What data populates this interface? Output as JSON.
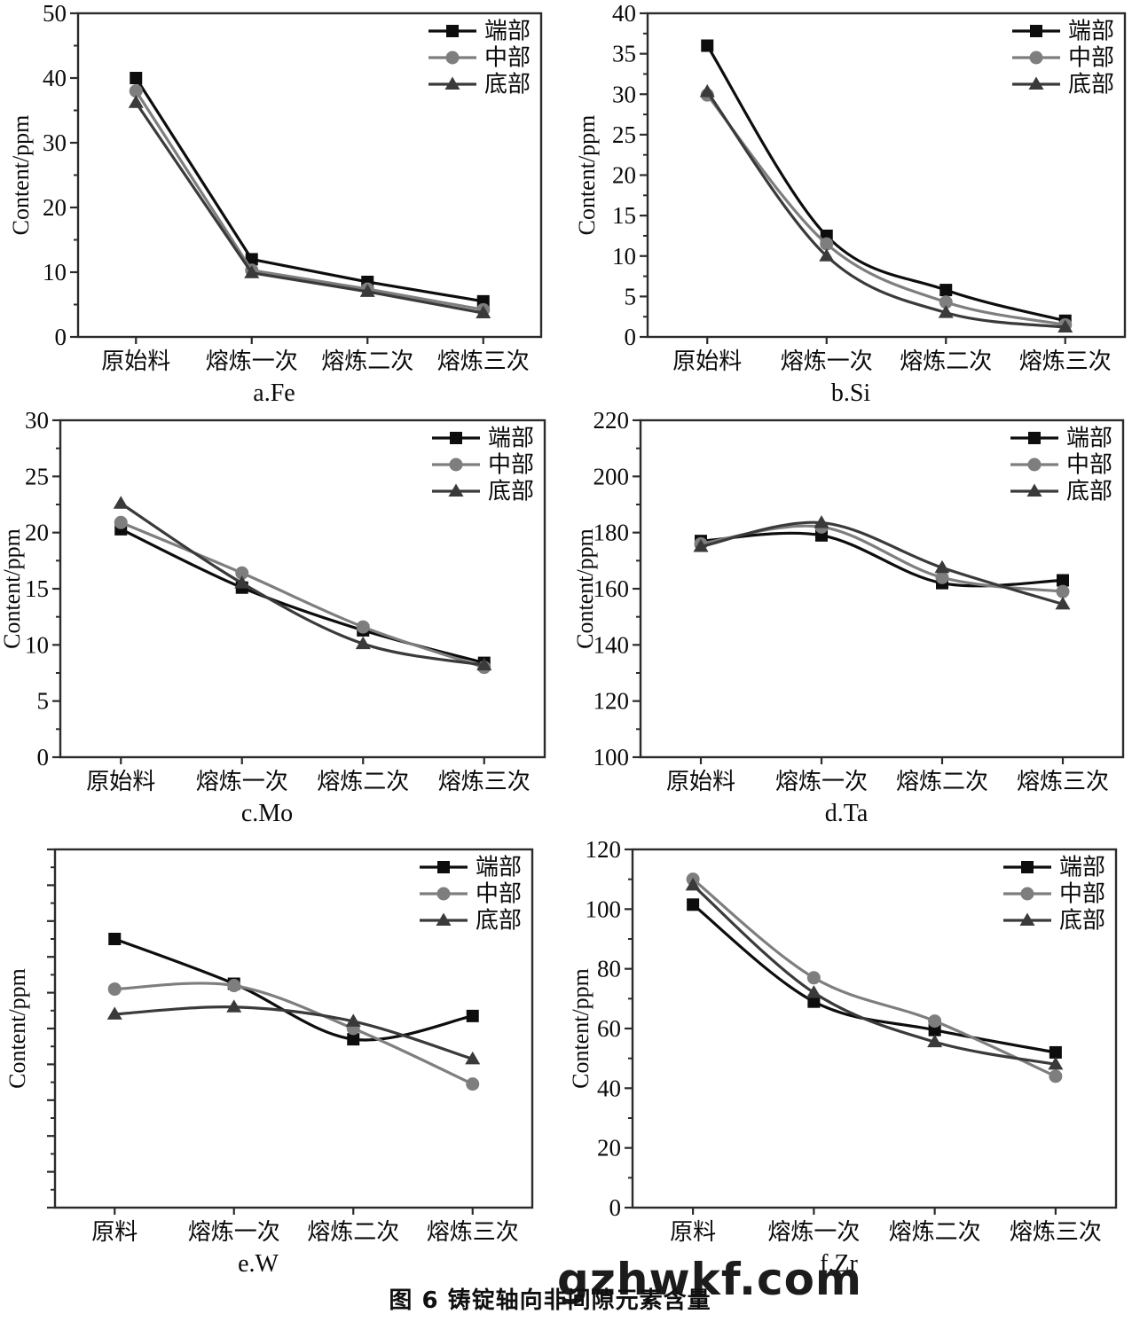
{
  "page": {
    "caption": "图 6  铸锭轴向非间隙元素含量",
    "watermark": "gzhwkf.com"
  },
  "legend_labels": [
    "端部",
    "中部",
    "底部"
  ],
  "series_colors": {
    "duanbu": "#0d0d0d",
    "zhongbu": "#7e7e7e",
    "dibu": "#3a3a3a"
  },
  "chart_data": [
    {
      "id": "a-fe",
      "type": "line",
      "label": "a.Fe",
      "ylabel": "Content/ppm",
      "categories": [
        "原始料",
        "熔炼一次",
        "熔炼二次",
        "熔炼三次"
      ],
      "ylim": [
        0,
        50
      ],
      "ytick_step": 10,
      "yminor_step": 5,
      "ytick_labels_visible": true,
      "smooth": false,
      "legend_position": "top-right",
      "series": [
        {
          "name": "端部",
          "marker": "square",
          "color": "#0d0d0d",
          "values": [
            40,
            12,
            8.5,
            5.5
          ]
        },
        {
          "name": "中部",
          "marker": "circle",
          "color": "#7e7e7e",
          "values": [
            38,
            10.3,
            7.4,
            4.2
          ]
        },
        {
          "name": "底部",
          "marker": "triangle",
          "color": "#3a3a3a",
          "values": [
            36.2,
            9.9,
            7.0,
            3.7
          ]
        }
      ]
    },
    {
      "id": "b-si",
      "type": "line",
      "label": "b.Si",
      "ylabel": "Content/ppm",
      "categories": [
        "原始料",
        "熔炼一次",
        "熔炼二次",
        "熔炼三次"
      ],
      "ylim": [
        0,
        40
      ],
      "ytick_step": 5,
      "yminor_step": 2.5,
      "ytick_labels_visible": true,
      "smooth": true,
      "legend_position": "top-right",
      "series": [
        {
          "name": "端部",
          "marker": "square",
          "color": "#0d0d0d",
          "values": [
            36,
            12.5,
            5.8,
            2.0
          ]
        },
        {
          "name": "中部",
          "marker": "circle",
          "color": "#7e7e7e",
          "values": [
            29.9,
            11.5,
            4.3,
            1.5
          ]
        },
        {
          "name": "底部",
          "marker": "triangle",
          "color": "#3a3a3a",
          "values": [
            30.3,
            10.0,
            3.0,
            1.2
          ]
        }
      ]
    },
    {
      "id": "c-mo",
      "type": "line",
      "label": "c.Mo",
      "ylabel": "Content/ppm",
      "categories": [
        "原始料",
        "熔炼一次",
        "熔炼二次",
        "熔炼三次"
      ],
      "ylim": [
        0,
        30
      ],
      "ytick_step": 5,
      "yminor_step": 2.5,
      "ytick_labels_visible": true,
      "smooth": true,
      "legend_position": "top-right",
      "series": [
        {
          "name": "端部",
          "marker": "square",
          "color": "#0d0d0d",
          "values": [
            20.3,
            15.1,
            11.3,
            8.4
          ]
        },
        {
          "name": "中部",
          "marker": "circle",
          "color": "#7e7e7e",
          "values": [
            20.9,
            16.4,
            11.6,
            8.0
          ]
        },
        {
          "name": "底部",
          "marker": "triangle",
          "color": "#3a3a3a",
          "values": [
            22.6,
            15.5,
            10.1,
            8.2
          ]
        }
      ]
    },
    {
      "id": "d-ta",
      "type": "line",
      "label": "d.Ta",
      "ylabel": "Content/ppm",
      "categories": [
        "原始料",
        "熔炼一次",
        "熔炼二次",
        "熔炼三次"
      ],
      "ylim": [
        100,
        220
      ],
      "ytick_step": 20,
      "yminor_step": 10,
      "ytick_labels_visible": true,
      "smooth": true,
      "legend_position": "top-right",
      "series": [
        {
          "name": "端部",
          "marker": "square",
          "color": "#0d0d0d",
          "values": [
            177,
            179,
            162,
            163
          ]
        },
        {
          "name": "中部",
          "marker": "circle",
          "color": "#7e7e7e",
          "values": [
            176,
            182,
            164,
            159
          ]
        },
        {
          "name": "底部",
          "marker": "triangle",
          "color": "#3a3a3a",
          "values": [
            175,
            183.5,
            167.5,
            154.5
          ]
        }
      ]
    },
    {
      "id": "e-w",
      "type": "line",
      "label": "e.W",
      "ylabel": "Content/ppm",
      "categories": [
        "原料",
        "熔炼一次",
        "熔炼二次",
        "熔炼三次"
      ],
      "ylim": [
        0,
        100
      ],
      "ytick_step": 10,
      "yminor_step": 5,
      "ytick_labels_visible": false,
      "y_scale_note": "axis unlabeled in figure; values are relative estimates",
      "smooth": true,
      "legend_position": "top-right",
      "series": [
        {
          "name": "端部",
          "marker": "square",
          "color": "#0d0d0d",
          "values": [
            75,
            62.5,
            47,
            53.5
          ]
        },
        {
          "name": "中部",
          "marker": "circle",
          "color": "#7e7e7e",
          "values": [
            61,
            62,
            50,
            34.5
          ]
        },
        {
          "name": "底部",
          "marker": "triangle",
          "color": "#3a3a3a",
          "values": [
            54,
            56,
            52,
            41.5
          ]
        }
      ]
    },
    {
      "id": "f-zr",
      "type": "line",
      "label": "f.Zr",
      "ylabel": "Content/ppm",
      "categories": [
        "原料",
        "熔炼一次",
        "熔炼二次",
        "熔炼三次"
      ],
      "ylim": [
        0,
        120
      ],
      "ytick_step": 20,
      "yminor_step": 10,
      "ytick_labels_visible": true,
      "smooth": true,
      "legend_position": "top-right",
      "series": [
        {
          "name": "端部",
          "marker": "square",
          "color": "#0d0d0d",
          "values": [
            101.5,
            69,
            59.5,
            52
          ]
        },
        {
          "name": "中部",
          "marker": "circle",
          "color": "#7e7e7e",
          "values": [
            110,
            77,
            62.5,
            44
          ]
        },
        {
          "name": "底部",
          "marker": "triangle",
          "color": "#3a3a3a",
          "values": [
            108,
            72,
            55.5,
            48
          ]
        }
      ]
    }
  ]
}
